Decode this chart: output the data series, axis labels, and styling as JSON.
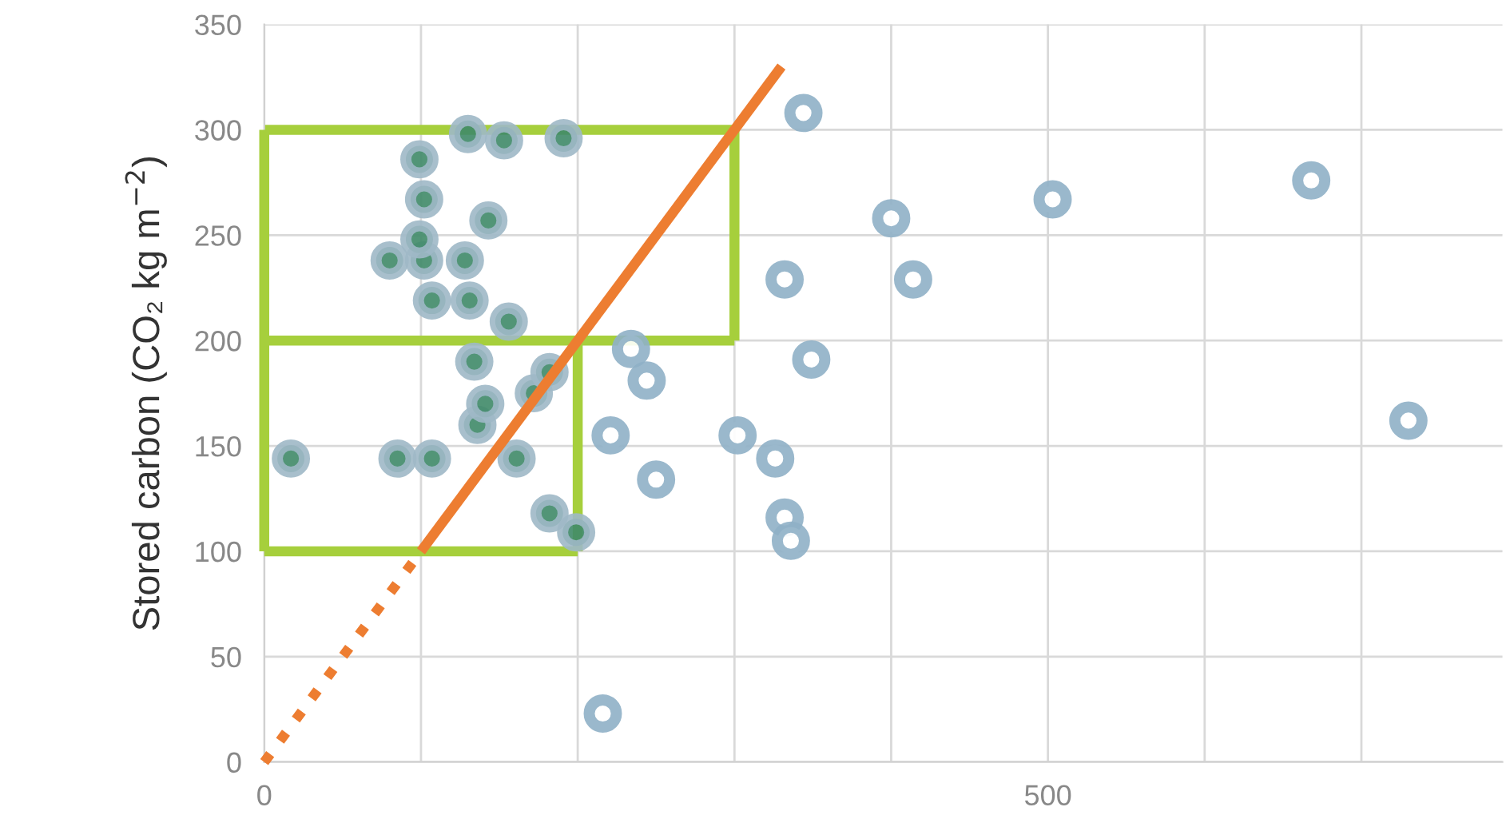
{
  "chart_data": {
    "type": "scatter",
    "ylabel": "Stored carbon (CO₂ kg m$^{−2}$)",
    "xlim": [
      0,
      790
    ],
    "ylim": [
      0,
      350
    ],
    "xticks": [
      0,
      {
        "value": 100,
        "label": null
      },
      {
        "value": 200,
        "label": null
      },
      {
        "value": 300,
        "label": null
      },
      {
        "value": 400,
        "label": null
      },
      500,
      {
        "value": 600,
        "label": null
      },
      {
        "value": 700,
        "label": null
      }
    ],
    "yticks": [
      0,
      50,
      100,
      150,
      200,
      250,
      300,
      350
    ],
    "grid": true,
    "legend": false,
    "series": [
      {
        "type": "line",
        "color": "#a6cf3c",
        "line_style": "solid",
        "marker": "none",
        "x": [
          0,
          300
        ],
        "values": [
          300,
          300
        ]
      },
      {
        "type": "line",
        "color": "#a6cf3c",
        "line_style": "solid",
        "marker": "none",
        "x": [
          0,
          300
        ],
        "values": [
          200,
          200
        ]
      },
      {
        "type": "line",
        "color": "#a6cf3c",
        "line_style": "solid",
        "marker": "none",
        "x": [
          0,
          200
        ],
        "values": [
          100,
          100
        ]
      },
      {
        "type": "line",
        "color": "#a6cf3c",
        "line_style": "solid",
        "marker": "none",
        "x": [
          300,
          300
        ],
        "values": [
          200,
          300
        ]
      },
      {
        "type": "line",
        "color": "#a6cf3c",
        "line_style": "solid",
        "marker": "none",
        "x": [
          200,
          200
        ],
        "values": [
          100,
          200
        ]
      },
      {
        "type": "line",
        "color": "#a6cf3c",
        "line_style": "solid",
        "marker": "none",
        "x": [
          0,
          0
        ],
        "values": [
          100,
          300
        ]
      },
      {
        "type": "scatter",
        "color": "#3f8a68",
        "marker": "circle",
        "x": [
          17,
          85,
          107,
          161,
          182,
          199,
          136,
          141,
          172,
          182,
          134,
          156,
          107,
          131,
          80,
          102,
          128,
          99,
          102,
          143,
          99,
          130,
          153,
          191
        ],
        "values": [
          144,
          144,
          144,
          144,
          118,
          109,
          160,
          170,
          175,
          185,
          190,
          209,
          219,
          219,
          238,
          238,
          238,
          248,
          267,
          257,
          286,
          298,
          295,
          296
        ]
      },
      {
        "type": "scatter",
        "color": "#8fb0c6",
        "marker": "circle",
        "x": [
          344,
          332,
          414,
          400,
          503,
          668,
          234,
          244,
          349,
          221,
          302,
          326,
          250,
          332,
          336,
          730,
          216
        ],
        "values": [
          308,
          229,
          229,
          258,
          267,
          276,
          196,
          181,
          191,
          155,
          155,
          144,
          134,
          116,
          105,
          162,
          23
        ]
      },
      {
        "type": "line",
        "color": "#ed7d31",
        "line_style": "dotted",
        "marker": "none",
        "x": [
          0,
          100
        ],
        "values": [
          0,
          100
        ]
      },
      {
        "type": "line",
        "color": "#ed7d31",
        "line_style": "solid",
        "marker": "none",
        "x": [
          100,
          330
        ],
        "values": [
          100,
          330
        ]
      }
    ]
  }
}
